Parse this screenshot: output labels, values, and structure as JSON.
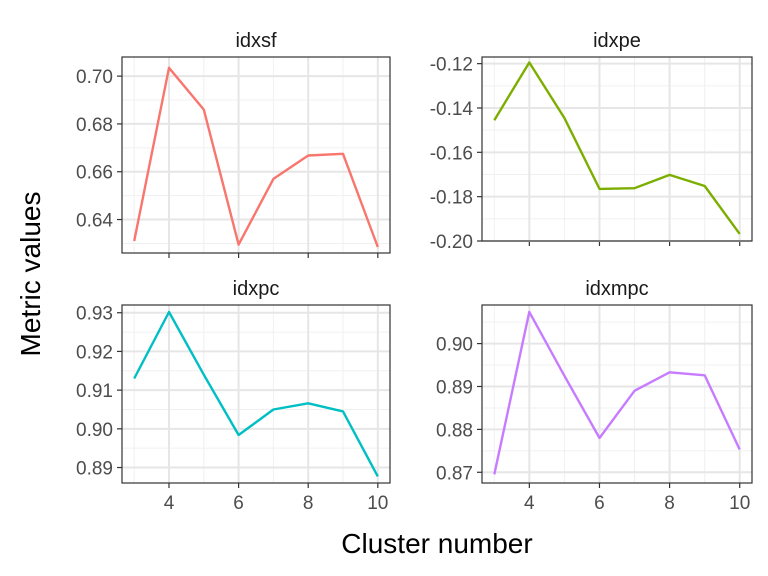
{
  "chart_data": {
    "type": "line",
    "xlabel": "Cluster number",
    "ylabel": "Metric values",
    "grid": true,
    "x_ticks": [
      4,
      6,
      8,
      10
    ],
    "panels": [
      {
        "title": "idxsf",
        "color": "#F8766D",
        "x": [
          3,
          4,
          5,
          6,
          7,
          8,
          9,
          10
        ],
        "values": [
          0.631,
          0.7035,
          0.686,
          0.6295,
          0.657,
          0.6668,
          0.6675,
          0.6285
        ],
        "ylim": [
          0.626,
          0.708
        ],
        "y_ticks": [
          0.64,
          0.66,
          0.68,
          0.7
        ],
        "y_tick_labels": [
          "0.64",
          "0.66",
          "0.68",
          "0.70"
        ]
      },
      {
        "title": "idxpe",
        "color": "#7CAE00",
        "x": [
          3,
          4,
          5,
          6,
          7,
          8,
          9,
          10
        ],
        "values": [
          -0.1455,
          -0.1195,
          -0.1445,
          -0.1765,
          -0.1762,
          -0.1702,
          -0.1752,
          -0.1968
        ],
        "ylim": [
          -0.2,
          -0.117
        ],
        "y_ticks": [
          -0.2,
          -0.18,
          -0.16,
          -0.14,
          -0.12
        ],
        "y_tick_labels": [
          "-0.20",
          "-0.18",
          "-0.16",
          "-0.14",
          "-0.12"
        ]
      },
      {
        "title": "idxpc",
        "color": "#00BFC4",
        "x": [
          3,
          4,
          5,
          6,
          7,
          8,
          9,
          10
        ],
        "values": [
          0.913,
          0.9302,
          0.914,
          0.8984,
          0.905,
          0.9066,
          0.9045,
          0.8877
        ],
        "ylim": [
          0.886,
          0.932
        ],
        "y_ticks": [
          0.89,
          0.9,
          0.91,
          0.92,
          0.93
        ],
        "y_tick_labels": [
          "0.89",
          "0.90",
          "0.91",
          "0.92",
          "0.93"
        ]
      },
      {
        "title": "idxmpc",
        "color": "#C77CFF",
        "x": [
          3,
          4,
          5,
          6,
          7,
          8,
          9,
          10
        ],
        "values": [
          0.8695,
          0.9074,
          0.8925,
          0.878,
          0.889,
          0.8933,
          0.8926,
          0.8753
        ],
        "ylim": [
          0.8675,
          0.909
        ],
        "y_ticks": [
          0.87,
          0.88,
          0.89,
          0.9
        ],
        "y_tick_labels": [
          "0.87",
          "0.88",
          "0.89",
          "0.90"
        ]
      }
    ]
  }
}
